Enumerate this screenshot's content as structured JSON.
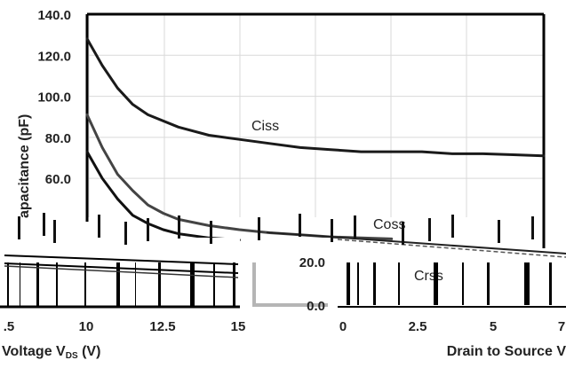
{
  "chart_data": {
    "type": "line",
    "title": "",
    "ylabel_visible": "apacitance (pF)",
    "xlabel_left_visible": "Voltage V",
    "xlabel_left_subscript": "DS",
    "xlabel_left_unit": " (V)",
    "xlabel_right_visible": "Drain to Source V",
    "ylim": [
      0,
      140
    ],
    "y_ticks": [
      "140.0",
      "120.0",
      "100.0",
      "80.0",
      "60.0"
    ],
    "x_ticks_left": [
      ".5",
      "10",
      "12.5",
      "15"
    ],
    "x_ticks_right": [
      "0",
      "2.5",
      "5",
      "7"
    ],
    "inset_y_ticks": [
      "20.0",
      "0.0"
    ],
    "grid": true,
    "legend": "none",
    "series": [
      {
        "name": "Ciss",
        "color": "#1a1a1a",
        "x": [
          0,
          0.5,
          1,
          1.5,
          2,
          3,
          4,
          5,
          6,
          7,
          8,
          9,
          10,
          11,
          12,
          13,
          14,
          15
        ],
        "y": [
          128,
          115,
          104,
          96,
          91,
          85,
          81,
          79,
          77,
          75,
          74,
          73,
          73,
          73,
          72,
          72,
          71.5,
          71
        ]
      },
      {
        "name": "Coss",
        "color": "#444444",
        "x": [
          0,
          0.5,
          1,
          1.5,
          2,
          2.5,
          3,
          4,
          5,
          6,
          7,
          8,
          9,
          10
        ],
        "y": [
          91,
          75,
          62,
          54,
          47,
          43,
          40,
          37,
          35,
          33.5,
          32.5,
          31.5,
          31,
          30.5
        ]
      },
      {
        "name": "Crss",
        "color": "#111111",
        "x": [
          0,
          0.5,
          1,
          1.5,
          2,
          2.5,
          3,
          4,
          5
        ],
        "y": [
          73,
          60,
          50,
          42,
          38,
          35,
          33,
          31,
          30
        ]
      }
    ]
  }
}
